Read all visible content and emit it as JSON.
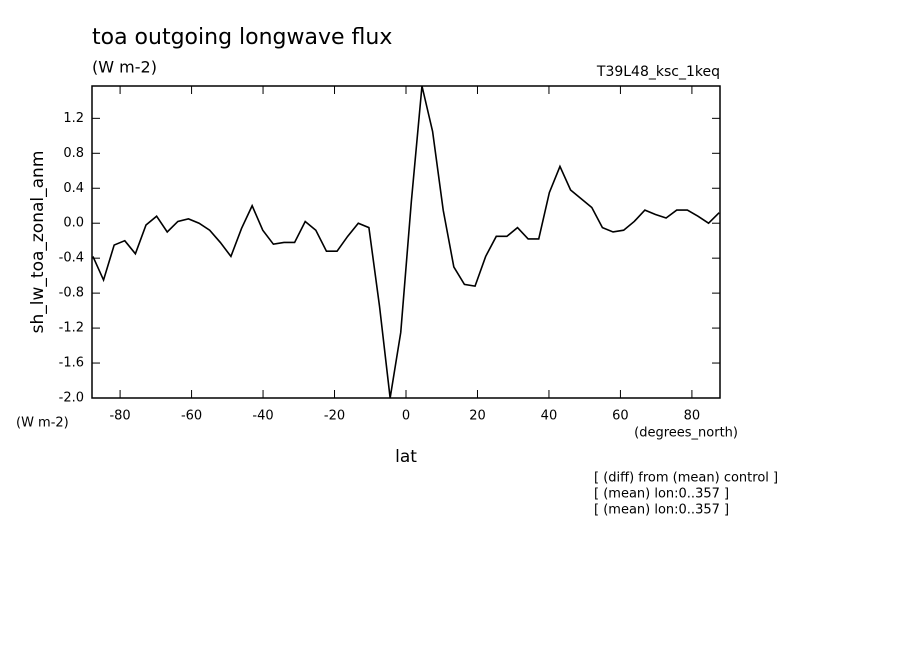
{
  "chart_data": {
    "type": "line",
    "title": "toa outgoing longwave flux",
    "subtitle": "(W m-2)",
    "dataset": "T39L48_ksc_1keq",
    "y_label": "sh_lw_toa_zonal_anm",
    "y_units": "(W m-2)",
    "x_label": "lat",
    "x_units": "(degrees_north)",
    "notes": [
      "[ (diff) from (mean) control ]",
      "[ (mean) lon:0..357 ]",
      "[ (mean) lon:0..357 ]"
    ],
    "x": [
      -87.6,
      -84.63,
      -81.66,
      -78.69,
      -75.72,
      -72.75,
      -69.78,
      -66.81,
      -63.84,
      -60.87,
      -57.9,
      -54.93,
      -51.96,
      -48.99,
      -46.02,
      -43.05,
      -40.08,
      -37.11,
      -34.14,
      -31.17,
      -28.2,
      -25.23,
      -22.26,
      -19.29,
      -16.32,
      -13.35,
      -10.38,
      -7.41,
      -4.44,
      -1.47,
      1.5,
      4.47,
      7.44,
      10.41,
      13.38,
      16.35,
      19.32,
      22.29,
      25.26,
      28.23,
      31.2,
      34.17,
      37.14,
      40.11,
      43.08,
      46.05,
      49.02,
      51.99,
      54.96,
      57.93,
      60.9,
      63.87,
      66.84,
      69.81,
      72.78,
      75.75,
      78.72,
      81.69,
      84.66,
      87.63
    ],
    "series": [
      {
        "name": "sh_lw_toa_zonal_anm",
        "color": "#000000",
        "values": [
          -0.38,
          -0.65,
          -0.25,
          -0.2,
          -0.35,
          -0.02,
          0.08,
          -0.1,
          0.02,
          0.05,
          0.0,
          -0.08,
          -0.22,
          -0.38,
          -0.06,
          0.2,
          -0.08,
          -0.24,
          -0.22,
          -0.22,
          0.02,
          -0.08,
          -0.32,
          -0.32,
          -0.15,
          0.0,
          -0.05,
          -0.95,
          -2.0,
          -1.25,
          0.25,
          1.57,
          1.05,
          0.15,
          -0.5,
          -0.7,
          -0.72,
          -0.38,
          -0.15,
          -0.15,
          -0.05,
          -0.18,
          -0.18,
          0.35,
          0.65,
          0.38,
          0.28,
          0.18,
          -0.05,
          -0.1,
          -0.08,
          0.02,
          0.15,
          0.1,
          0.06,
          0.15,
          0.15,
          0.08,
          0.0,
          0.12
        ]
      }
    ],
    "xlim": [
      -87.86,
      87.86
    ],
    "ylim": [
      -2.0,
      1.57
    ],
    "xticks": [
      -80,
      -60,
      -40,
      -20,
      0,
      20,
      40,
      60,
      80
    ],
    "yticks": [
      1.2,
      0.8,
      0.4,
      {
        "value": 0,
        "label": "0.0"
      },
      -0.4,
      -0.8,
      -1.2,
      -1.6,
      {
        "value": -2.0,
        "label": "-2.0"
      }
    ],
    "grid": false
  }
}
